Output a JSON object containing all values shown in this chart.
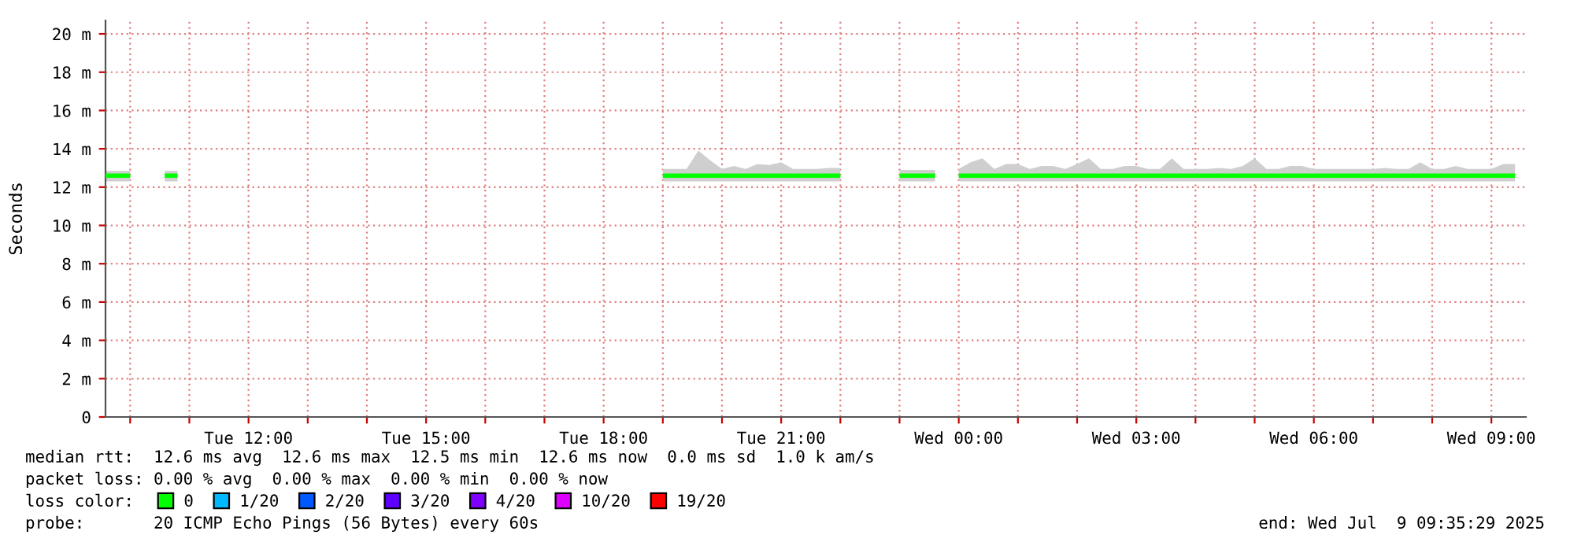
{
  "chart_data": {
    "type": "line",
    "ylabel": "Seconds",
    "legend_title": "loss color:",
    "legend": "bottom",
    "grid": true,
    "xlim": [
      "2025-07-08T09:35",
      "2025-07-09T09:35"
    ],
    "xticks": [
      {
        "value": "2025-07-08T10:00",
        "label": null
      },
      {
        "value": "2025-07-08T11:00",
        "label": null
      },
      {
        "value": "2025-07-08T12:00",
        "label": "Tue 12:00"
      },
      {
        "value": "2025-07-08T13:00",
        "label": null
      },
      {
        "value": "2025-07-08T14:00",
        "label": null
      },
      {
        "value": "2025-07-08T15:00",
        "label": "Tue 15:00"
      },
      {
        "value": "2025-07-08T16:00",
        "label": null
      },
      {
        "value": "2025-07-08T17:00",
        "label": null
      },
      {
        "value": "2025-07-08T18:00",
        "label": "Tue 18:00"
      },
      {
        "value": "2025-07-08T19:00",
        "label": null
      },
      {
        "value": "2025-07-08T20:00",
        "label": null
      },
      {
        "value": "2025-07-08T21:00",
        "label": "Tue 21:00"
      },
      {
        "value": "2025-07-08T22:00",
        "label": null
      },
      {
        "value": "2025-07-08T23:00",
        "label": null
      },
      {
        "value": "2025-07-09T00:00",
        "label": "Wed 00:00"
      },
      {
        "value": "2025-07-09T01:00",
        "label": null
      },
      {
        "value": "2025-07-09T02:00",
        "label": null
      },
      {
        "value": "2025-07-09T03:00",
        "label": "Wed 03:00"
      },
      {
        "value": "2025-07-09T04:00",
        "label": null
      },
      {
        "value": "2025-07-09T05:00",
        "label": null
      },
      {
        "value": "2025-07-09T06:00",
        "label": "Wed 06:00"
      },
      {
        "value": "2025-07-09T07:00",
        "label": null
      },
      {
        "value": "2025-07-09T08:00",
        "label": null
      },
      {
        "value": "2025-07-09T09:00",
        "label": "Wed 09:00"
      }
    ],
    "ylim": [
      0,
      20.7
    ],
    "yticks": [
      {
        "value": 0,
        "label": "0"
      },
      {
        "value": 2,
        "label": "2 m"
      },
      {
        "value": 4,
        "label": "4 m"
      },
      {
        "value": 6,
        "label": "6 m"
      },
      {
        "value": 8,
        "label": "8 m"
      },
      {
        "value": 10,
        "label": "10 m"
      },
      {
        "value": 12,
        "label": "12 m"
      },
      {
        "value": 14,
        "label": "14 m"
      },
      {
        "value": 16,
        "label": "16 m"
      },
      {
        "value": 18,
        "label": "18 m"
      },
      {
        "value": 20,
        "label": "20 m"
      }
    ],
    "annotations": [
      "median rtt:  12.6 ms avg  12.6 ms max  12.5 ms min  12.6 ms now  0.0 ms sd  1.0 k am/s",
      "packet loss: 0.00 % avg  0.00 % max  0.00 % min  0.00 % now",
      "probe:       20 ICMP Echo Pings (56 Bytes) every 60s",
      "end: Wed Jul  9 09:35:29 2025"
    ],
    "series": [
      {
        "name": "0",
        "color": "#00ff00",
        "x": [
          "2025-07-08T09:35",
          "2025-07-08T10:00",
          "2025-07-08T10:15",
          "2025-07-08T10:35",
          "2025-07-08T10:48",
          "2025-07-08T15:00",
          "2025-07-08T19:00",
          "2025-07-08T19:12",
          "2025-07-08T19:24",
          "2025-07-08T19:36",
          "2025-07-08T19:48",
          "2025-07-08T20:00",
          "2025-07-08T20:12",
          "2025-07-08T20:24",
          "2025-07-08T20:36",
          "2025-07-08T20:48",
          "2025-07-08T21:00",
          "2025-07-08T21:12",
          "2025-07-08T21:24",
          "2025-07-08T21:36",
          "2025-07-08T21:48",
          "2025-07-08T22:00",
          "2025-07-08T22:30",
          "2025-07-08T23:00",
          "2025-07-08T23:12",
          "2025-07-08T23:24",
          "2025-07-08T23:36",
          "2025-07-08T23:48",
          "2025-07-09T00:00",
          "2025-07-09T00:12",
          "2025-07-09T00:24",
          "2025-07-09T00:36",
          "2025-07-09T00:48",
          "2025-07-09T01:00",
          "2025-07-09T01:12",
          "2025-07-09T01:24",
          "2025-07-09T01:36",
          "2025-07-09T01:48",
          "2025-07-09T02:00",
          "2025-07-09T02:12",
          "2025-07-09T02:24",
          "2025-07-09T02:36",
          "2025-07-09T02:48",
          "2025-07-09T03:00",
          "2025-07-09T03:12",
          "2025-07-09T03:24",
          "2025-07-09T03:36",
          "2025-07-09T03:48",
          "2025-07-09T04:00",
          "2025-07-09T04:12",
          "2025-07-09T04:24",
          "2025-07-09T04:36",
          "2025-07-09T04:48",
          "2025-07-09T05:00",
          "2025-07-09T05:12",
          "2025-07-09T05:24",
          "2025-07-09T05:36",
          "2025-07-09T05:48",
          "2025-07-09T06:00",
          "2025-07-09T06:12",
          "2025-07-09T06:24",
          "2025-07-09T06:36",
          "2025-07-09T06:48",
          "2025-07-09T07:00",
          "2025-07-09T07:12",
          "2025-07-09T07:24",
          "2025-07-09T07:36",
          "2025-07-09T07:48",
          "2025-07-09T08:00",
          "2025-07-09T08:12",
          "2025-07-09T08:24",
          "2025-07-09T08:36",
          "2025-07-09T08:48",
          "2025-07-09T09:00",
          "2025-07-09T09:12",
          "2025-07-09T09:24"
        ],
        "values": [
          12.6,
          12.6,
          null,
          12.6,
          12.6,
          null,
          12.6,
          12.6,
          12.6,
          12.6,
          12.6,
          12.6,
          12.6,
          12.6,
          12.6,
          12.6,
          12.6,
          12.6,
          12.6,
          12.6,
          12.6,
          12.6,
          null,
          12.6,
          12.6,
          12.6,
          12.6,
          null,
          12.6,
          12.6,
          12.6,
          12.6,
          12.6,
          12.6,
          12.6,
          12.6,
          12.6,
          12.6,
          12.6,
          12.6,
          12.6,
          12.6,
          12.6,
          12.6,
          12.6,
          12.6,
          12.6,
          12.6,
          12.6,
          12.6,
          12.6,
          12.6,
          12.6,
          12.6,
          12.6,
          12.6,
          12.6,
          12.6,
          12.6,
          12.6,
          12.6,
          12.6,
          12.6,
          12.6,
          12.6,
          12.6,
          12.6,
          12.6,
          12.6,
          12.6,
          12.6,
          12.6,
          12.6,
          12.6,
          12.6,
          12.6
        ],
        "lower": [
          12.3,
          12.3,
          null,
          12.3,
          12.3,
          null,
          12.3,
          12.3,
          12.3,
          12.3,
          12.3,
          12.3,
          12.3,
          12.3,
          12.3,
          12.3,
          12.3,
          12.3,
          12.3,
          12.3,
          12.3,
          12.3,
          null,
          12.3,
          12.3,
          12.3,
          12.3,
          null,
          12.3,
          12.3,
          12.3,
          12.3,
          12.3,
          12.3,
          12.3,
          12.3,
          12.3,
          12.3,
          12.3,
          12.3,
          12.3,
          12.3,
          12.3,
          12.3,
          12.3,
          12.3,
          12.3,
          12.3,
          12.3,
          12.3,
          12.3,
          12.3,
          12.3,
          12.3,
          12.3,
          12.3,
          12.3,
          12.3,
          12.3,
          12.3,
          12.3,
          12.3,
          12.3,
          12.3,
          12.3,
          12.3,
          12.3,
          12.3,
          12.3,
          12.3,
          12.3,
          12.3,
          12.3,
          12.3,
          12.3,
          12.3
        ],
        "upper": [
          12.85,
          12.85,
          null,
          12.85,
          12.85,
          null,
          12.95,
          12.95,
          12.95,
          13.9,
          13.4,
          12.95,
          13.1,
          12.95,
          13.2,
          13.15,
          13.3,
          12.95,
          12.95,
          12.95,
          13.0,
          13.0,
          null,
          12.9,
          12.9,
          12.9,
          12.9,
          null,
          12.95,
          13.3,
          13.5,
          12.95,
          13.2,
          13.2,
          12.95,
          13.1,
          13.1,
          12.95,
          13.2,
          13.5,
          12.95,
          12.95,
          13.1,
          13.1,
          12.95,
          12.95,
          13.5,
          12.95,
          12.95,
          12.95,
          13.0,
          12.95,
          13.1,
          13.5,
          12.95,
          12.95,
          13.1,
          13.1,
          12.95,
          12.95,
          12.95,
          12.95,
          12.95,
          12.95,
          13.0,
          12.95,
          12.95,
          13.3,
          12.95,
          12.95,
          13.1,
          12.95,
          12.95,
          12.95,
          13.2,
          13.2
        ]
      },
      {
        "name": "1/20",
        "color": "#00b8ff"
      },
      {
        "name": "2/20",
        "color": "#0059ff"
      },
      {
        "name": "3/20",
        "color": "#5e00ff"
      },
      {
        "name": "4/20",
        "color": "#7e00ff"
      },
      {
        "name": "10/20",
        "color": "#dd00ff"
      },
      {
        "name": "19/20",
        "color": "#ff0000"
      }
    ]
  }
}
